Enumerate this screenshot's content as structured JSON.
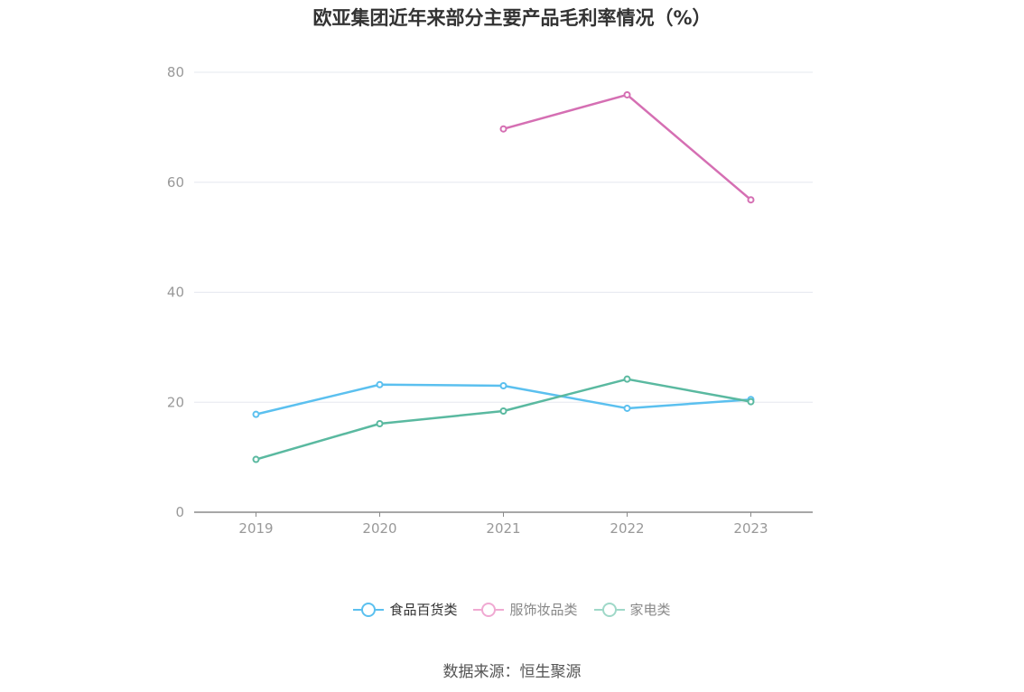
{
  "chart_data": {
    "type": "line",
    "title": "欧亚集团近年来部分主要产品毛利率情况（%）",
    "categories": [
      "2019",
      "2020",
      "2021",
      "2022",
      "2023"
    ],
    "ylim": [
      0,
      80
    ],
    "yticks": [
      0,
      20,
      40,
      60,
      80
    ],
    "grid": true,
    "legend_position": "bottom",
    "series": [
      {
        "name": "食品百货类",
        "color": "#5bc0ef",
        "values": [
          17.8,
          23.2,
          23.0,
          18.9,
          20.5
        ]
      },
      {
        "name": "服饰妆品类",
        "color": "#d56fb3",
        "values": [
          null,
          null,
          69.7,
          75.9,
          56.8
        ]
      },
      {
        "name": "家电类",
        "color": "#5ab9a0",
        "values": [
          9.6,
          16.1,
          18.4,
          24.2,
          20.1
        ]
      }
    ]
  },
  "legend_colors": {
    "faded_pink": "#f0a9d2",
    "faded_green": "#9fd8c8"
  },
  "source": "数据来源：恒生聚源"
}
